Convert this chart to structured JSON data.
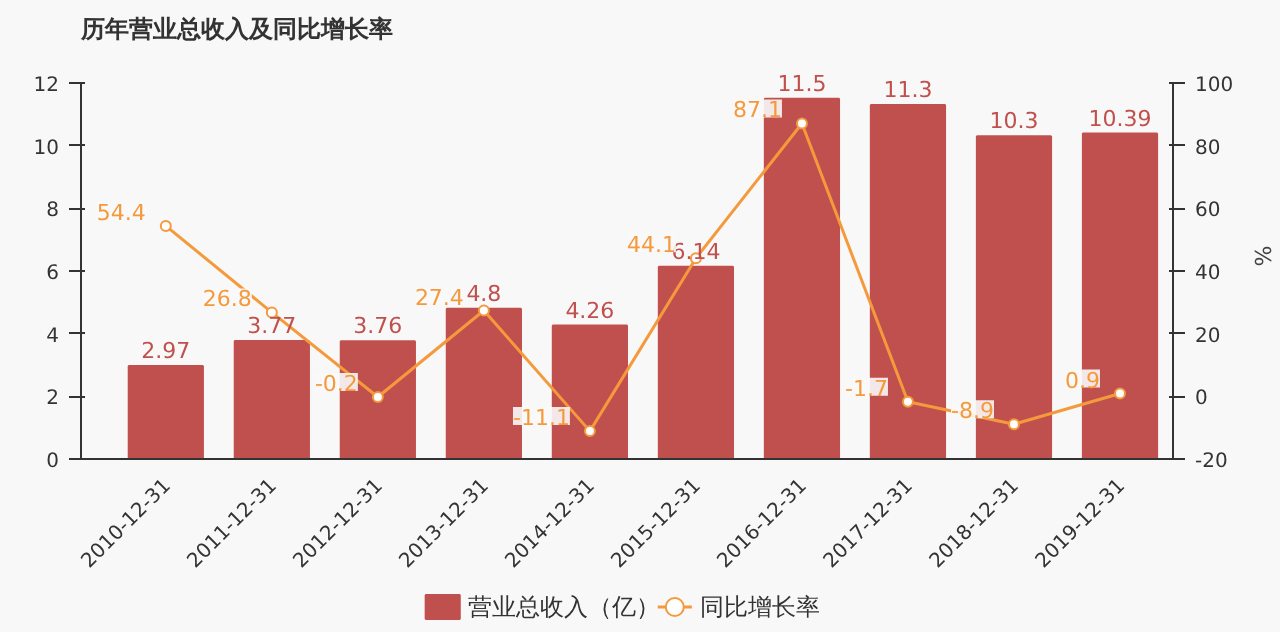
{
  "chart_data": {
    "type": "bar",
    "title": "历年营业总收入及同比增长率",
    "y2label": "%",
    "categories": [
      "2010-12-31",
      "2011-12-31",
      "2012-12-31",
      "2013-12-31",
      "2014-12-31",
      "2015-12-31",
      "2016-12-31",
      "2017-12-31",
      "2018-12-31",
      "2019-12-31"
    ],
    "series": [
      {
        "name": "营业总收入（亿）",
        "color": "#c0504d",
        "values": [
          2.97,
          3.77,
          3.76,
          4.8,
          4.26,
          6.14,
          11.5,
          11.3,
          10.3,
          10.39
        ]
      },
      {
        "name": "同比增长率",
        "type": "line",
        "axis": "y2",
        "color": "#f59a3c",
        "values": [
          54.4,
          26.8,
          -0.2,
          27.4,
          -11.1,
          44.1,
          87.1,
          -1.7,
          -8.9,
          0.9
        ]
      }
    ],
    "ylim": [
      0,
      12
    ],
    "yticks": [
      0,
      2,
      4,
      6,
      8,
      10,
      12
    ],
    "y2lim": [
      -20,
      100
    ],
    "y2ticks": [
      -20,
      0,
      20,
      40,
      60,
      80,
      100
    ],
    "data_labels": true,
    "marker": "circle",
    "line_style": "solid",
    "grid": false,
    "legend": "bottom"
  }
}
